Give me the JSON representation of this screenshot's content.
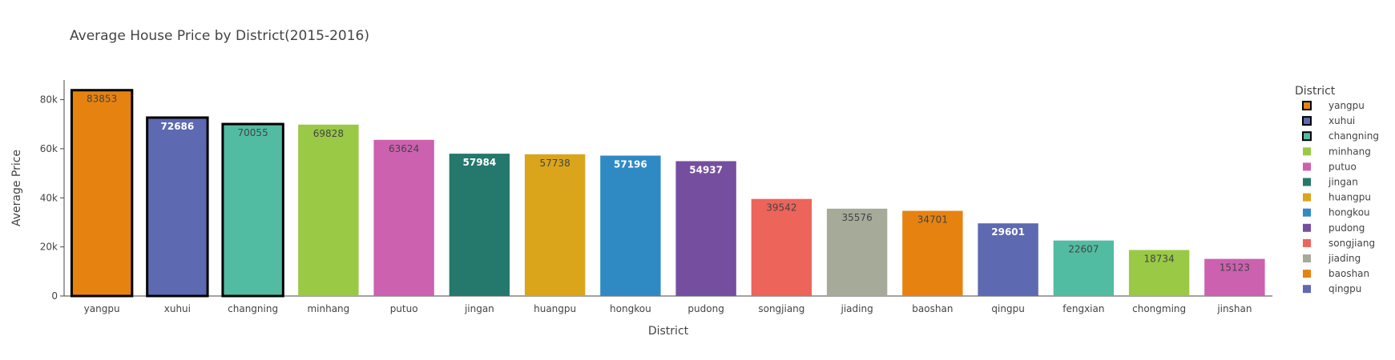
{
  "chart_data": {
    "type": "bar",
    "title": "Average House Price by District(2015-2016)",
    "xlabel": "District",
    "ylabel": "Average Price",
    "ylim": [
      0,
      88000
    ],
    "yticks": [
      0,
      20000,
      40000,
      60000,
      80000
    ],
    "ytick_labels": [
      "0",
      "20k",
      "40k",
      "60k",
      "80k"
    ],
    "grid": false,
    "legend_title": "District",
    "legend_position": "right",
    "categories": [
      "yangpu",
      "xuhui",
      "changning",
      "minhang",
      "putuo",
      "jingan",
      "huangpu",
      "hongkou",
      "pudong",
      "songjiang",
      "jiading",
      "baoshan",
      "qingpu",
      "fengxian",
      "chongming",
      "jinshan"
    ],
    "values": [
      83853,
      72686,
      70055,
      69828,
      63624,
      57984,
      57738,
      57196,
      54937,
      39542,
      35576,
      34701,
      29601,
      22607,
      18734,
      15123
    ],
    "value_labels": [
      "83853",
      "72686",
      "70055",
      "69828",
      "63624",
      "57984",
      "57738",
      "57196",
      "54937",
      "39542",
      "35576",
      "34701",
      "29601",
      "22607",
      "18734",
      "15123"
    ],
    "colors": [
      "#E68310",
      "#5D69B1",
      "#52BCA3",
      "#99C945",
      "#CC61B0",
      "#24796C",
      "#DAA51B",
      "#2F8AC4",
      "#764E9F",
      "#ED645A",
      "#A5AA99",
      "#E68310",
      "#5D69B1",
      "#52BCA3",
      "#99C945",
      "#CC61B0"
    ],
    "label_colors": [
      "#444444",
      "#ffffff",
      "#444444",
      "#444444",
      "#444444",
      "#ffffff",
      "#444444",
      "#ffffff",
      "#ffffff",
      "#444444",
      "#444444",
      "#444444",
      "#ffffff",
      "#444444",
      "#444444",
      "#444444"
    ],
    "highlighted": [
      "yangpu",
      "xuhui",
      "changning"
    ],
    "legend_entries": [
      "yangpu",
      "xuhui",
      "changning",
      "minhang",
      "putuo",
      "jingan",
      "huangpu",
      "hongkou",
      "pudong",
      "songjiang",
      "jiading",
      "baoshan",
      "qingpu"
    ]
  }
}
